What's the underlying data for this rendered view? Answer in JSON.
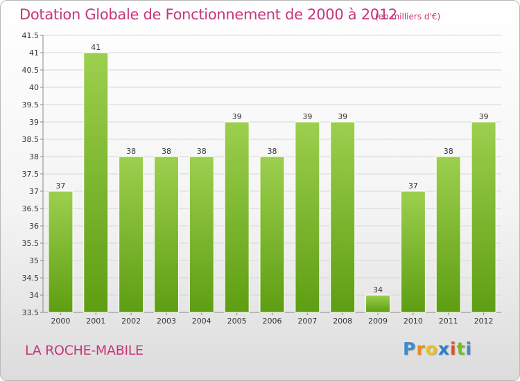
{
  "chart_data": {
    "type": "bar",
    "title": "Dotation Globale de Fonctionnement de 2000 à 2012",
    "subtitle": "(en milliers d'€)",
    "categories": [
      "2000",
      "2001",
      "2002",
      "2003",
      "2004",
      "2005",
      "2006",
      "2007",
      "2008",
      "2009",
      "2010",
      "2011",
      "2012"
    ],
    "values": [
      37,
      41,
      38,
      38,
      38,
      39,
      38,
      39,
      39,
      34,
      37,
      38,
      39
    ],
    "ylim": [
      33.5,
      41.5
    ],
    "yticks": [
      "33.5",
      "34",
      "34.5",
      "35",
      "35.5",
      "36",
      "36.5",
      "37",
      "37.5",
      "38",
      "38.5",
      "39",
      "39.5",
      "40",
      "40.5",
      "41",
      "41.5"
    ],
    "grid": true,
    "bar_color_top": "#9ccf4e",
    "bar_color_bottom": "#5e9e12"
  },
  "location": "LA ROCHE-MABILE",
  "logo": {
    "letters": [
      "P",
      "r",
      "o",
      "x",
      "i",
      "t",
      "i"
    ],
    "colors": [
      "#3b8ccf",
      "#f08a1c",
      "#e8c21a",
      "#2e7fc9",
      "#e84a2e",
      "#7ab82e",
      "#3b8ccf"
    ]
  }
}
